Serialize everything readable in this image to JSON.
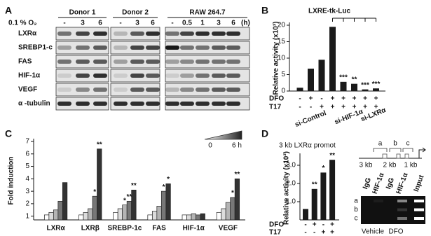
{
  "blot": {
    "panel_label": "A",
    "groups": [
      "Donor 1",
      "Donor 2",
      "RAW 264.7"
    ],
    "condition": "0.1 % O₂",
    "times": [
      [
        "-",
        "3",
        "6"
      ],
      [
        "-",
        "3",
        "6"
      ],
      [
        "-",
        "0.5",
        "1",
        "3",
        "6"
      ]
    ],
    "unit": "(h)",
    "rows": [
      "LXRα",
      "SREBP1-c",
      "FAS",
      "HIF-1α",
      "VEGF",
      "α -tubulin"
    ]
  },
  "chart_data": [
    {
      "type": "bar",
      "panel_label": "B",
      "title": "LXRE-tk-Luc",
      "ylabel": "Relative activity (x10³)",
      "ylim": [
        0,
        20
      ],
      "yticks": [
        0,
        5,
        10,
        15,
        20
      ],
      "values": [
        1.0,
        6.8,
        9.5,
        19.5,
        2.8,
        2.2,
        0.5,
        0.8
      ],
      "annotations": [
        null,
        null,
        null,
        null,
        "***",
        "**",
        "***",
        "***"
      ],
      "color": "#1a1a1a",
      "treatments": [
        {
          "name": "DFO",
          "values": [
            "-",
            "+",
            "-",
            "+",
            "+",
            "+",
            "+",
            "+"
          ]
        },
        {
          "name": "T17",
          "values": [
            "-",
            "-",
            "+",
            "+",
            "+",
            "+",
            "+",
            "+"
          ]
        }
      ],
      "groups": [
        "si-Control",
        "si-HIF-1α",
        "si-LXRα"
      ]
    },
    {
      "type": "grouped-bar",
      "panel_label": "C",
      "ylabel": "Fold induction",
      "categories": [
        "LXRα",
        "LXRβ",
        "SREBP-1c",
        "FAS",
        "HIF-1α",
        "VEGF"
      ],
      "ylim": [
        0.7,
        7
      ],
      "yticks": [
        1,
        2,
        3,
        4,
        5,
        6,
        7
      ],
      "legend": {
        "start": "0",
        "end": "6 h"
      },
      "series": [
        {
          "color": "#ffffff",
          "values": [
            1.1,
            1.1,
            1.3,
            1.1,
            1.1,
            1.3
          ],
          "annotations": [
            null,
            null,
            null,
            null,
            null,
            null
          ]
        },
        {
          "color": "#dcdcdc",
          "values": [
            1.3,
            1.3,
            1.6,
            1.4,
            1.1,
            1.6
          ],
          "annotations": [
            null,
            null,
            null,
            null,
            null,
            null
          ]
        },
        {
          "color": "#b4b4b4",
          "values": [
            1.5,
            1.6,
            1.9,
            1.8,
            1.2,
            2.1
          ],
          "annotations": [
            null,
            null,
            "*",
            null,
            null,
            null
          ]
        },
        {
          "color": "#777777",
          "values": [
            2.2,
            2.6,
            2.2,
            3.0,
            1.1,
            2.5
          ],
          "annotations": [
            null,
            "*",
            "**",
            "*",
            null,
            "*"
          ]
        },
        {
          "color": "#333333",
          "values": [
            3.7,
            6.4,
            3.1,
            3.6,
            1.2,
            4.0
          ],
          "annotations": [
            null,
            "**",
            "**",
            "*",
            null,
            "**"
          ]
        }
      ]
    },
    {
      "type": "bar",
      "panel_label": "D",
      "title": "3 kb LXRα promot",
      "ylabel": "Relative activity (x10³)",
      "ylim": [
        0,
        3.5
      ],
      "yticks": [
        {
          "value": 1,
          "label": "1.0"
        },
        {
          "value": 2,
          "label": "2.0"
        },
        {
          "value": 3,
          "label": "3.0"
        }
      ],
      "values": [
        0.6,
        1.7,
        2.6,
        3.3
      ],
      "annotations": [
        null,
        "**",
        "*",
        "**"
      ],
      "color": "#1a1a1a",
      "treatments": [
        {
          "name": "DFO",
          "values": [
            "-",
            "+",
            "-",
            "+"
          ]
        },
        {
          "name": "T17",
          "values": [
            "-",
            "-",
            "+",
            "+"
          ]
        }
      ]
    }
  ],
  "chip": {
    "positions": [
      "3 kb",
      "2 kb",
      "1 kb"
    ],
    "regions": [
      "a",
      "b",
      "c"
    ],
    "lanes": [
      "IgG",
      "HIF-1α",
      "IgG",
      "HIF-1α",
      "Input"
    ],
    "rows": [
      "a",
      "b",
      "c"
    ],
    "conditions": [
      "Vehicle",
      "DFO"
    ]
  }
}
